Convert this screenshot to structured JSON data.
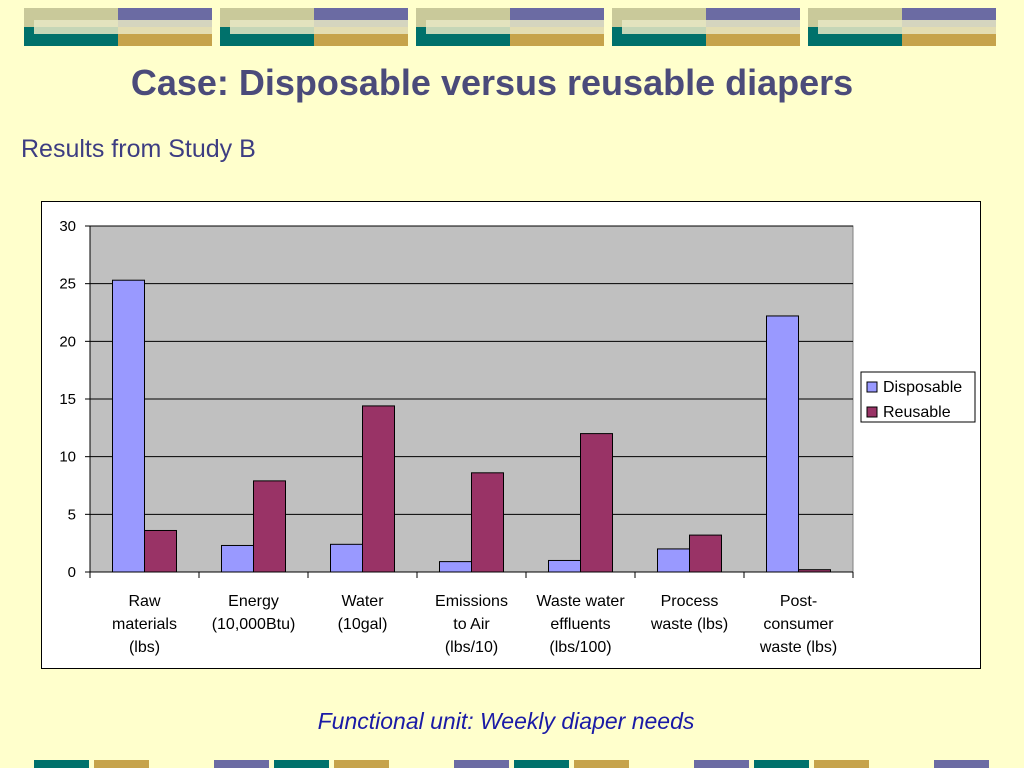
{
  "slide": {
    "title": "Case: Disposable versus reusable diapers",
    "subtitle": "Results from Study B",
    "footnote": "Functional unit: Weekly diaper needs"
  },
  "colors": {
    "background": "#ffffcc",
    "banner_olive": "#c9c99a",
    "banner_purple": "#6b6ba3",
    "banner_teal": "#00716b",
    "banner_gold": "#c6a34b",
    "banner_light": "#e8e8c4",
    "plot_area": "#c0c0c0",
    "disposable": "#9999ff",
    "reusable": "#993366"
  },
  "chart_data": {
    "type": "bar",
    "categories": [
      [
        "Raw",
        "materials",
        "(lbs)"
      ],
      [
        "Energy",
        "(10,000Btu)"
      ],
      [
        "Water",
        "(10gal)"
      ],
      [
        "Emissions",
        "to Air",
        "(lbs/10)"
      ],
      [
        "Waste water",
        "effluents",
        "(lbs/100)"
      ],
      [
        "Process",
        "waste (lbs)"
      ],
      [
        "Post-",
        "consumer",
        "waste (lbs)"
      ]
    ],
    "series": [
      {
        "name": "Disposable",
        "values": [
          25.3,
          2.3,
          2.4,
          0.9,
          1.0,
          2.0,
          22.2
        ]
      },
      {
        "name": "Reusable",
        "values": [
          3.6,
          7.9,
          14.4,
          8.6,
          12.0,
          3.2,
          0.2
        ]
      }
    ],
    "ylim": [
      0,
      30
    ],
    "yticks": [
      0,
      5,
      10,
      15,
      20,
      25,
      30
    ],
    "grid": true,
    "legend_position": "right"
  }
}
